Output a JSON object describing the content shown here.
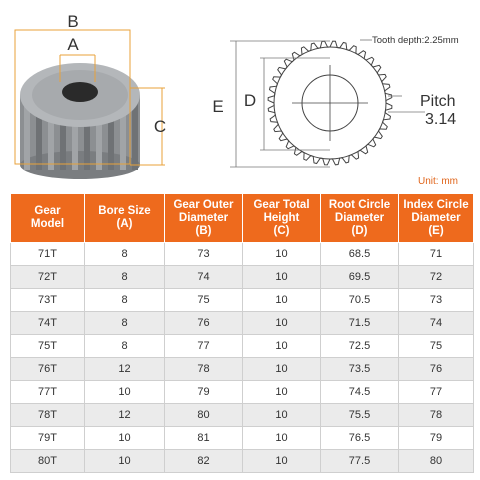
{
  "diagram": {
    "labels": {
      "a": "A",
      "b": "B",
      "c": "C",
      "d": "D",
      "e": "E"
    },
    "tooth_depth": "Tooth depth:2.25mm",
    "pitch_label": "Pitch",
    "pitch_value": "3.14",
    "unit": "Unit: mm"
  },
  "table": {
    "headers": [
      [
        "Gear",
        "Model"
      ],
      [
        "Bore Size",
        "(A)"
      ],
      [
        "Gear Outer",
        "Diameter",
        "(B)"
      ],
      [
        "Gear Total",
        "Height",
        "(C)"
      ],
      [
        "Root Circle",
        "Diameter",
        "(D)"
      ],
      [
        "Index Circle",
        "Diameter",
        "(E)"
      ]
    ],
    "rows": [
      [
        "71T",
        "8",
        "73",
        "10",
        "68.5",
        "71"
      ],
      [
        "72T",
        "8",
        "74",
        "10",
        "69.5",
        "72"
      ],
      [
        "73T",
        "8",
        "75",
        "10",
        "70.5",
        "73"
      ],
      [
        "74T",
        "8",
        "76",
        "10",
        "71.5",
        "74"
      ],
      [
        "75T",
        "8",
        "77",
        "10",
        "72.5",
        "75"
      ],
      [
        "76T",
        "12",
        "78",
        "10",
        "73.5",
        "76"
      ],
      [
        "77T",
        "10",
        "79",
        "10",
        "74.5",
        "77"
      ],
      [
        "78T",
        "12",
        "80",
        "10",
        "75.5",
        "78"
      ],
      [
        "79T",
        "10",
        "81",
        "10",
        "76.5",
        "79"
      ],
      [
        "80T",
        "10",
        "82",
        "10",
        "77.5",
        "80"
      ]
    ]
  },
  "colors": {
    "header_bg": "#ee6a1d",
    "accent": "#e0651b",
    "dimension_lines": "#e8a23a"
  }
}
